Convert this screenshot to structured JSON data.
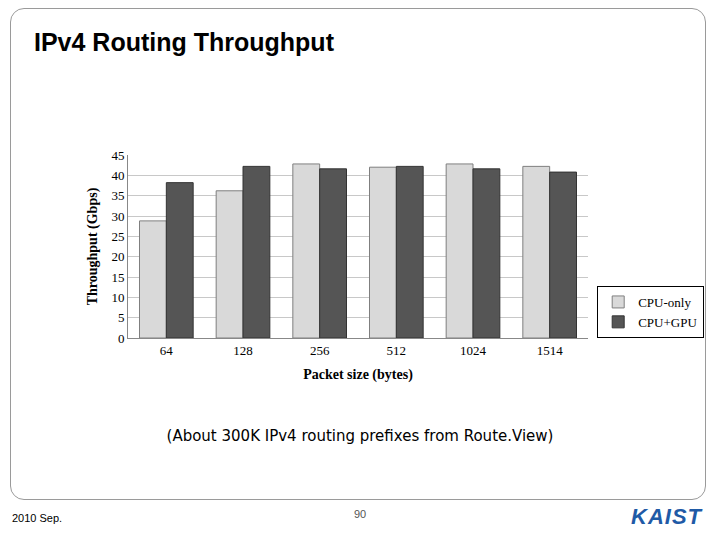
{
  "chart_data": {
    "type": "bar",
    "title": "IPv4 Routing Throughput",
    "x_label": "Packet size (bytes)",
    "y_label": "Throughput (Gbps)",
    "categories": [
      "64",
      "128",
      "256",
      "512",
      "1024",
      "1514"
    ],
    "series": [
      {
        "name": "CPU-only",
        "color": "#d9d9d9",
        "values": [
          28.8,
          36.2,
          42.8,
          42.0,
          42.8,
          42.2
        ]
      },
      {
        "name": "CPU+GPU",
        "color": "#555555",
        "values": [
          38.2,
          42.2,
          41.6,
          42.2,
          41.6,
          40.8
        ]
      }
    ],
    "ylim": [
      0,
      45
    ],
    "yticks": [
      0,
      5,
      10,
      15,
      20,
      25,
      30,
      35,
      40,
      45
    ],
    "grid": true,
    "legend": "right",
    "annotations": [
      "(About 300K IPv4 routing prefixes from Route.View)",
      "2010 Sep.",
      "90",
      "KAIST"
    ]
  }
}
